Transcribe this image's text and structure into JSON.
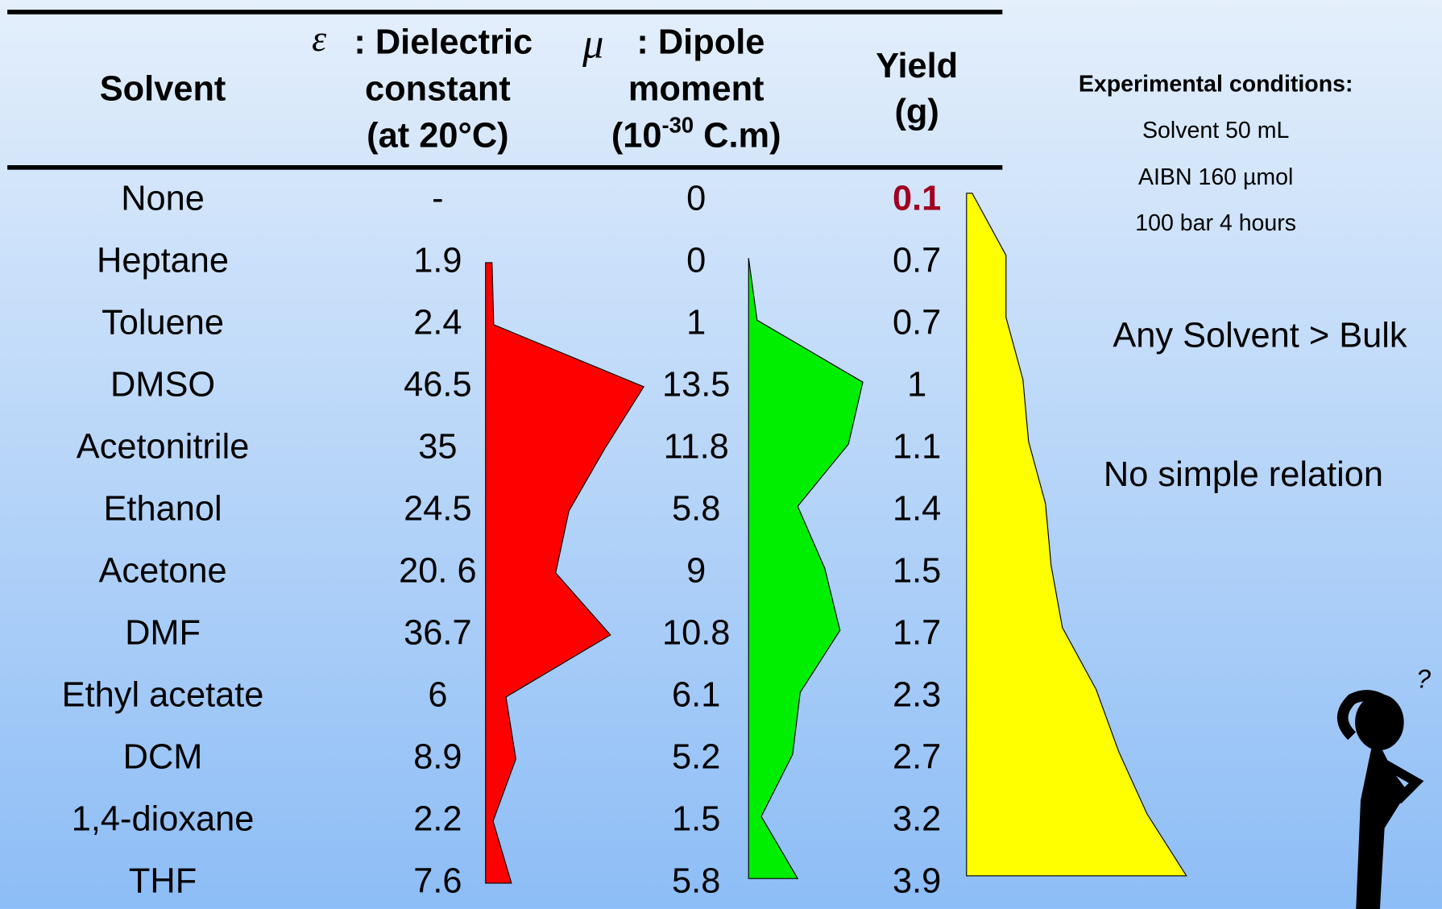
{
  "table": {
    "header": {
      "solvent": "Solvent",
      "dielectric": {
        "symbol": "ε",
        "lines": [
          ": Dielectric",
          "constant",
          "(at 20°C)"
        ]
      },
      "dipole": {
        "symbol": "μ",
        "lines": [
          ": Dipole",
          "moment"
        ],
        "unit": [
          "(10",
          "-30",
          " C.m)"
        ]
      },
      "yield": [
        "Yield",
        "(g)"
      ]
    },
    "rows": [
      [
        "None",
        "-",
        "0",
        "0.1"
      ],
      [
        "Heptane",
        "1.9",
        "0",
        "0.7"
      ],
      [
        "Toluene",
        "2.4",
        "1",
        "0.7"
      ],
      [
        "DMSO",
        "46.5",
        "13.5",
        "1"
      ],
      [
        "Acetonitrile",
        "35",
        "11.8",
        "1.1"
      ],
      [
        "Ethanol",
        "24.5",
        "5.8",
        "1.4"
      ],
      [
        "Acetone",
        "20. 6",
        "9",
        "1.5"
      ],
      [
        "DMF",
        "36.7",
        "10.8",
        "1.7"
      ],
      [
        "Ethyl acetate",
        "6",
        "6.1",
        "2.3"
      ],
      [
        "DCM",
        "8.9",
        "5.2",
        "2.7"
      ],
      [
        "1,4-dioxane",
        "2.2",
        "1.5",
        "3.2"
      ],
      [
        "THF",
        "7.6",
        "5.8",
        "3.9"
      ]
    ]
  },
  "conditions": {
    "title": "Experimental conditions:",
    "lines": [
      "Solvent 50 mL",
      "AIBN 160 µmol",
      "100 bar 4 hours"
    ]
  },
  "notes": [
    "Any Solvent > Bulk",
    "No simple relation"
  ],
  "figure_mark": "?"
}
